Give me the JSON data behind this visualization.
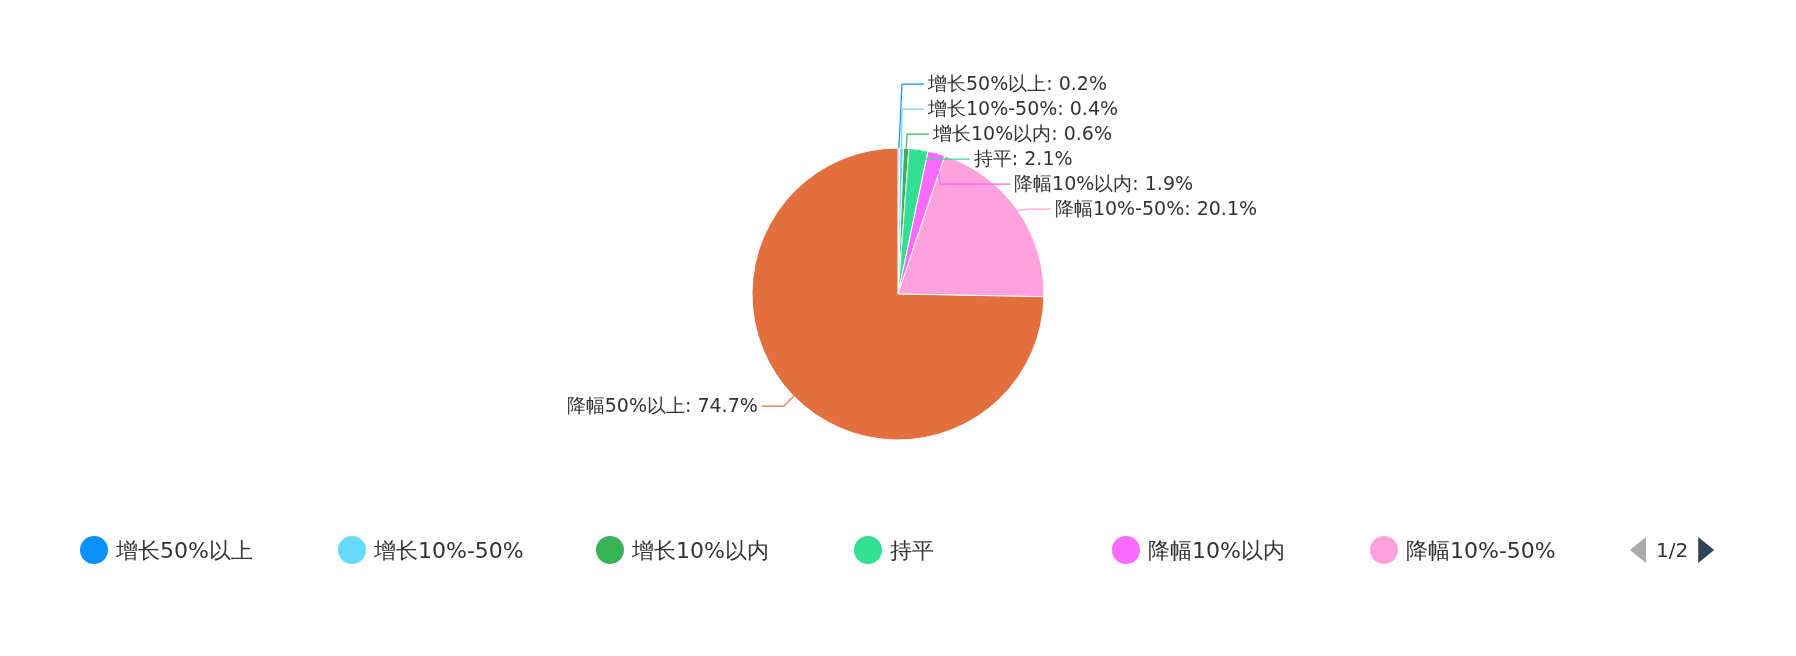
{
  "chart_data": {
    "type": "pie",
    "categories": [
      "增长50%以上",
      "增长10%-50%",
      "增长10%以内",
      "持平",
      "降幅10%以内",
      "降幅10%-50%",
      "降幅50%以上"
    ],
    "values": [
      0.2,
      0.4,
      0.6,
      2.1,
      1.9,
      20.1,
      74.7
    ],
    "colors": [
      "#0b8ff8",
      "#66d9ff",
      "#38b255",
      "#33df91",
      "#f86bfc",
      "#ffa1dd",
      "#e36e3e"
    ],
    "value_labels": [
      ": 0.2%",
      ": 0.4%",
      ": 0.6%",
      ": 2.1%",
      ": 1.9%",
      ": 20.1%",
      ": 74.7%"
    ],
    "legend": "bottom",
    "annotations": [
      "1/2"
    ]
  }
}
